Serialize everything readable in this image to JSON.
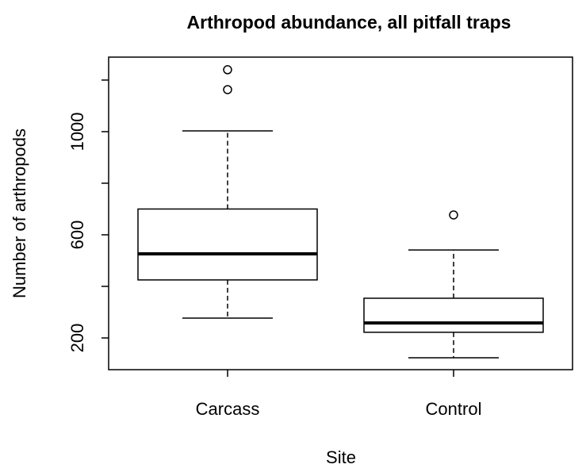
{
  "chart_data": {
    "type": "boxplot",
    "title": "Arthropod abundance, all pitfall traps",
    "x_label": "Site",
    "y_label": "Number of arthropods",
    "categories": [
      "Carcass",
      "Control"
    ],
    "boxes": [
      {
        "min": 277,
        "q1": 425,
        "median": 526,
        "q3": 700,
        "max": 1003,
        "outliers": [
          1163,
          1240
        ]
      },
      {
        "min": 123,
        "q1": 222,
        "median": 258,
        "q3": 354,
        "max": 541,
        "outliers": [
          677
        ]
      }
    ],
    "ylim": [
      77,
      1289
    ],
    "yticks": [
      200,
      600,
      1000
    ],
    "yminor_ticks": [
      400,
      800,
      1200
    ],
    "color": "#000000"
  }
}
